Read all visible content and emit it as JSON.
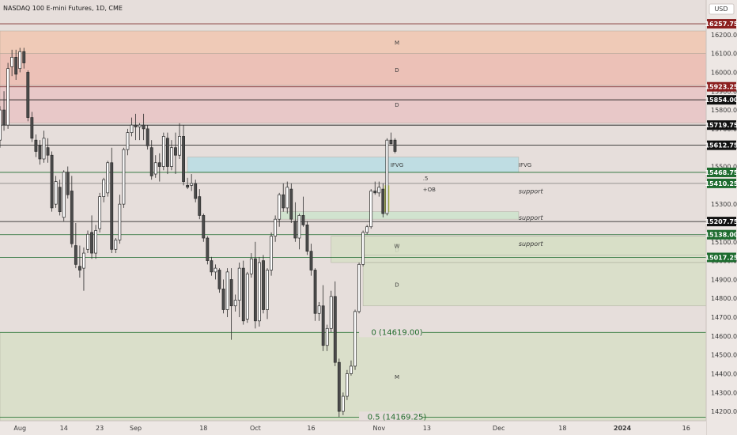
{
  "header": {
    "title": "NASDAQ 100 E-mini Futures, 1D, CME",
    "currency": "USD"
  },
  "chart_data": {
    "type": "candlestick",
    "y_axis": {
      "range": [
        14150,
        16300
      ],
      "ticks": [
        14200,
        14300,
        14400,
        14500,
        14600,
        14700,
        14800,
        14900,
        15000,
        15100,
        15200,
        15300,
        15400,
        15500,
        15600,
        15700,
        15800,
        15900,
        16000,
        16100,
        16200
      ],
      "tick_labels": [
        "14200.00",
        "14300.00",
        "14400.00",
        "14500.00",
        "14600.00",
        "14700.00",
        "14800.00",
        "14900.00",
        "15000.00",
        "15100.00",
        "15200.00",
        "15300.00",
        "15400.00",
        "15500.00",
        "15600.00",
        "15700.00",
        "15800.00",
        "15900.00",
        "16000.00",
        "16100.00",
        "16200.00"
      ]
    },
    "x_axis": {
      "labels": [
        {
          "text": "Aug",
          "day": 3
        },
        {
          "text": "14",
          "day": 14
        },
        {
          "text": "23",
          "day": 23
        },
        {
          "text": "Sep",
          "day": 32
        },
        {
          "text": "18",
          "day": 49
        },
        {
          "text": "Oct",
          "day": 62
        },
        {
          "text": "16",
          "day": 76
        },
        {
          "text": "Nov",
          "day": 93
        },
        {
          "text": "13",
          "day": 105
        },
        {
          "text": "Dec",
          "day": 123
        },
        {
          "text": "18",
          "day": 139
        },
        {
          "text": "2024",
          "day": 154
        },
        {
          "text": "16",
          "day": 170
        }
      ],
      "range": [
        -2,
        175
      ]
    },
    "candles": [
      {
        "d": -2,
        "o": 15640,
        "h": 15820,
        "l": 15600,
        "c": 15800
      },
      {
        "d": -1,
        "o": 15800,
        "h": 15900,
        "l": 15690,
        "c": 15720
      },
      {
        "d": 0,
        "o": 15720,
        "h": 16050,
        "l": 15700,
        "c": 16020
      },
      {
        "d": 1,
        "o": 16030,
        "h": 16120,
        "l": 15980,
        "c": 16080
      },
      {
        "d": 2,
        "o": 16080,
        "h": 16120,
        "l": 15960,
        "c": 15990
      },
      {
        "d": 3,
        "o": 16020,
        "h": 16130,
        "l": 16000,
        "c": 16110
      },
      {
        "d": 4,
        "o": 16110,
        "h": 16130,
        "l": 16020,
        "c": 16050
      },
      {
        "d": 5,
        "o": 16000,
        "h": 16010,
        "l": 15740,
        "c": 15760
      },
      {
        "d": 6,
        "o": 15760,
        "h": 15790,
        "l": 15630,
        "c": 15650
      },
      {
        "d": 7,
        "o": 15640,
        "h": 15670,
        "l": 15550,
        "c": 15580
      },
      {
        "d": 8,
        "o": 15610,
        "h": 15640,
        "l": 15510,
        "c": 15540
      },
      {
        "d": 9,
        "o": 15540,
        "h": 15690,
        "l": 15520,
        "c": 15650
      },
      {
        "d": 10,
        "o": 15600,
        "h": 15650,
        "l": 15520,
        "c": 15560
      },
      {
        "d": 11,
        "o": 15560,
        "h": 15580,
        "l": 15260,
        "c": 15280
      },
      {
        "d": 12,
        "o": 15300,
        "h": 15450,
        "l": 15280,
        "c": 15420
      },
      {
        "d": 13,
        "o": 15390,
        "h": 15430,
        "l": 15240,
        "c": 15260
      },
      {
        "d": 14,
        "o": 15230,
        "h": 15480,
        "l": 15210,
        "c": 15470
      },
      {
        "d": 15,
        "o": 15470,
        "h": 15500,
        "l": 15330,
        "c": 15350
      },
      {
        "d": 16,
        "o": 15370,
        "h": 15450,
        "l": 15070,
        "c": 15090
      },
      {
        "d": 17,
        "o": 15080,
        "h": 15200,
        "l": 14960,
        "c": 14980
      },
      {
        "d": 18,
        "o": 14970,
        "h": 15080,
        "l": 14910,
        "c": 14950
      },
      {
        "d": 19,
        "o": 14960,
        "h": 15070,
        "l": 14840,
        "c": 15040
      },
      {
        "d": 20,
        "o": 15060,
        "h": 15160,
        "l": 15040,
        "c": 15140
      },
      {
        "d": 21,
        "o": 15150,
        "h": 15240,
        "l": 15010,
        "c": 15040
      },
      {
        "d": 22,
        "o": 15040,
        "h": 15190,
        "l": 15010,
        "c": 15160
      },
      {
        "d": 23,
        "o": 15170,
        "h": 15360,
        "l": 15150,
        "c": 15340
      },
      {
        "d": 24,
        "o": 15340,
        "h": 15440,
        "l": 15310,
        "c": 15430
      },
      {
        "d": 25,
        "o": 15360,
        "h": 15530,
        "l": 15340,
        "c": 15520
      },
      {
        "d": 26,
        "o": 15520,
        "h": 15600,
        "l": 15040,
        "c": 15060
      },
      {
        "d": 27,
        "o": 15060,
        "h": 15120,
        "l": 15040,
        "c": 15110
      },
      {
        "d": 28,
        "o": 15110,
        "h": 15350,
        "l": 15090,
        "c": 15300
      },
      {
        "d": 29,
        "o": 15300,
        "h": 15600,
        "l": 15280,
        "c": 15590
      },
      {
        "d": 30,
        "o": 15590,
        "h": 15700,
        "l": 15560,
        "c": 15680
      },
      {
        "d": 31,
        "o": 15680,
        "h": 15760,
        "l": 15660,
        "c": 15720
      },
      {
        "d": 32,
        "o": 15720,
        "h": 15780,
        "l": 15640,
        "c": 15710
      },
      {
        "d": 33,
        "o": 15710,
        "h": 15730,
        "l": 15640,
        "c": 15720
      },
      {
        "d": 34,
        "o": 15720,
        "h": 15780,
        "l": 15640,
        "c": 15700
      },
      {
        "d": 35,
        "o": 15700,
        "h": 15720,
        "l": 15590,
        "c": 15610
      },
      {
        "d": 36,
        "o": 15600,
        "h": 15640,
        "l": 15430,
        "c": 15450
      },
      {
        "d": 37,
        "o": 15460,
        "h": 15560,
        "l": 15440,
        "c": 15520
      },
      {
        "d": 38,
        "o": 15520,
        "h": 15570,
        "l": 15420,
        "c": 15500
      },
      {
        "d": 39,
        "o": 15500,
        "h": 15680,
        "l": 15480,
        "c": 15660
      },
      {
        "d": 40,
        "o": 15650,
        "h": 15680,
        "l": 15460,
        "c": 15500
      },
      {
        "d": 41,
        "o": 15500,
        "h": 15640,
        "l": 15480,
        "c": 15600
      },
      {
        "d": 42,
        "o": 15600,
        "h": 15680,
        "l": 15460,
        "c": 15560
      },
      {
        "d": 43,
        "o": 15560,
        "h": 15730,
        "l": 15540,
        "c": 15660
      },
      {
        "d": 44,
        "o": 15660,
        "h": 15720,
        "l": 15400,
        "c": 15420
      },
      {
        "d": 45,
        "o": 15400,
        "h": 15440,
        "l": 15380,
        "c": 15390
      },
      {
        "d": 46,
        "o": 15400,
        "h": 15460,
        "l": 15370,
        "c": 15410
      },
      {
        "d": 47,
        "o": 15410,
        "h": 15430,
        "l": 15310,
        "c": 15330
      },
      {
        "d": 48,
        "o": 15340,
        "h": 15380,
        "l": 15220,
        "c": 15240
      },
      {
        "d": 49,
        "o": 15240,
        "h": 15250,
        "l": 15100,
        "c": 15120
      },
      {
        "d": 50,
        "o": 15120,
        "h": 15130,
        "l": 14980,
        "c": 15000
      },
      {
        "d": 51,
        "o": 15000,
        "h": 15020,
        "l": 14920,
        "c": 14940
      },
      {
        "d": 52,
        "o": 14940,
        "h": 14980,
        "l": 14900,
        "c": 14960
      },
      {
        "d": 53,
        "o": 14950,
        "h": 14960,
        "l": 14830,
        "c": 14850
      },
      {
        "d": 54,
        "o": 14850,
        "h": 14900,
        "l": 14720,
        "c": 14740
      },
      {
        "d": 55,
        "o": 14740,
        "h": 14960,
        "l": 14700,
        "c": 14940
      },
      {
        "d": 56,
        "o": 14900,
        "h": 14960,
        "l": 14580,
        "c": 14760
      },
      {
        "d": 57,
        "o": 14760,
        "h": 14820,
        "l": 14730,
        "c": 14790
      },
      {
        "d": 58,
        "o": 14790,
        "h": 14990,
        "l": 14700,
        "c": 14960
      },
      {
        "d": 59,
        "o": 14960,
        "h": 15000,
        "l": 14660,
        "c": 14680
      },
      {
        "d": 60,
        "o": 14690,
        "h": 14940,
        "l": 14670,
        "c": 14930
      },
      {
        "d": 61,
        "o": 14930,
        "h": 15040,
        "l": 14910,
        "c": 15010
      },
      {
        "d": 62,
        "o": 15010,
        "h": 15100,
        "l": 14640,
        "c": 14680
      },
      {
        "d": 63,
        "o": 14680,
        "h": 15020,
        "l": 14650,
        "c": 14990
      },
      {
        "d": 64,
        "o": 15000,
        "h": 15030,
        "l": 14720,
        "c": 14740
      },
      {
        "d": 65,
        "o": 14740,
        "h": 14960,
        "l": 14690,
        "c": 14950
      },
      {
        "d": 66,
        "o": 14950,
        "h": 15150,
        "l": 14920,
        "c": 15130
      },
      {
        "d": 67,
        "o": 15130,
        "h": 15240,
        "l": 15100,
        "c": 15220
      },
      {
        "d": 68,
        "o": 15220,
        "h": 15360,
        "l": 15180,
        "c": 15350
      },
      {
        "d": 69,
        "o": 15350,
        "h": 15410,
        "l": 15260,
        "c": 15280
      },
      {
        "d": 70,
        "o": 15280,
        "h": 15420,
        "l": 15250,
        "c": 15390
      },
      {
        "d": 71,
        "o": 15380,
        "h": 15410,
        "l": 15200,
        "c": 15220
      },
      {
        "d": 72,
        "o": 15210,
        "h": 15310,
        "l": 15100,
        "c": 15120
      },
      {
        "d": 73,
        "o": 15120,
        "h": 15250,
        "l": 15060,
        "c": 15240
      },
      {
        "d": 74,
        "o": 15240,
        "h": 15340,
        "l": 15180,
        "c": 15190
      },
      {
        "d": 75,
        "o": 15190,
        "h": 15210,
        "l": 15030,
        "c": 15050
      },
      {
        "d": 76,
        "o": 15050,
        "h": 15090,
        "l": 14920,
        "c": 14950
      },
      {
        "d": 77,
        "o": 14950,
        "h": 14960,
        "l": 14680,
        "c": 14720
      },
      {
        "d": 78,
        "o": 14720,
        "h": 14780,
        "l": 14680,
        "c": 14760
      },
      {
        "d": 79,
        "o": 14760,
        "h": 14870,
        "l": 14520,
        "c": 14550
      },
      {
        "d": 80,
        "o": 14550,
        "h": 14660,
        "l": 14520,
        "c": 14640
      },
      {
        "d": 81,
        "o": 14640,
        "h": 14840,
        "l": 14620,
        "c": 14810
      },
      {
        "d": 82,
        "o": 14810,
        "h": 14890,
        "l": 14440,
        "c": 14460
      },
      {
        "d": 83,
        "o": 14460,
        "h": 14480,
        "l": 14170,
        "c": 14200
      },
      {
        "d": 84,
        "o": 14200,
        "h": 14300,
        "l": 14180,
        "c": 14280
      },
      {
        "d": 85,
        "o": 14280,
        "h": 14420,
        "l": 14260,
        "c": 14400
      },
      {
        "d": 86,
        "o": 14400,
        "h": 14470,
        "l": 14390,
        "c": 14440
      },
      {
        "d": 87,
        "o": 14440,
        "h": 14740,
        "l": 14420,
        "c": 14730
      },
      {
        "d": 88,
        "o": 14730,
        "h": 14990,
        "l": 14720,
        "c": 14980
      },
      {
        "d": 89,
        "o": 14980,
        "h": 15160,
        "l": 14970,
        "c": 15150
      },
      {
        "d": 90,
        "o": 15150,
        "h": 15190,
        "l": 15140,
        "c": 15180
      },
      {
        "d": 91,
        "o": 15180,
        "h": 15380,
        "l": 15170,
        "c": 15370
      },
      {
        "d": 92,
        "o": 15370,
        "h": 15420,
        "l": 15350,
        "c": 15360
      },
      {
        "d": 93,
        "o": 15360,
        "h": 15420,
        "l": 15340,
        "c": 15390
      },
      {
        "d": 94,
        "o": 15380,
        "h": 15410,
        "l": 15230,
        "c": 15250
      },
      {
        "d": 95,
        "o": 15250,
        "h": 15650,
        "l": 15240,
        "c": 15640
      },
      {
        "d": 96,
        "o": 15640,
        "h": 15680,
        "l": 15620,
        "c": 15620
      },
      {
        "d": 97,
        "o": 15640,
        "h": 15650,
        "l": 15570,
        "c": 15580
      }
    ],
    "zones": [
      {
        "label": "M",
        "from": 16100,
        "to": 16220,
        "x_from": -2,
        "x_to": 175,
        "color": "#f0c7b0"
      },
      {
        "label": "D",
        "from": 15930,
        "to": 16100,
        "x_from": -2,
        "x_to": 175,
        "color": "#ecbcb0"
      },
      {
        "label": "D",
        "from": 15730,
        "to": 15930,
        "x_from": -2,
        "x_to": 175,
        "color": "#e8c4c4"
      },
      {
        "label": "IFVG",
        "from": 15470,
        "to": 15550,
        "x_from": 45,
        "x_to": 128,
        "color": "#b7dde4"
      },
      {
        "label": "",
        "from": 15220,
        "to": 15260,
        "x_from": 68,
        "x_to": 128,
        "color": "#cde4cc"
      },
      {
        "label": "D",
        "from": 14990,
        "to": 15130,
        "x_from": 81,
        "x_to": 175,
        "color": "#d7dfc7"
      },
      {
        "label": "W",
        "from": 15030,
        "to": 15130,
        "x_from": 89,
        "x_to": 175,
        "color": "#d7dfc7"
      },
      {
        "label": "D",
        "from": 14760,
        "to": 14990,
        "x_from": 89,
        "x_to": 175,
        "color": "#d7dfc7"
      },
      {
        "label": "M",
        "from": 14150,
        "to": 14619,
        "x_from": -2,
        "x_to": 175,
        "color": "#d7dfc7"
      }
    ],
    "levels": [
      {
        "price": 16257.75,
        "label": "16257.75",
        "badge_color": "#8b1e1e",
        "line_color": "#7a2a2a"
      },
      {
        "price": 15923.25,
        "label": "15923.25",
        "badge_color": "#8b1e1e",
        "line_color": "#7a2a2a"
      },
      {
        "price": 15854.0,
        "label": "15854.00",
        "badge_color": "#111111",
        "line_color": "#111111"
      },
      {
        "price": 15719.75,
        "label": "15719.75",
        "badge_color": "#111111",
        "line_color": "#111111"
      },
      {
        "price": 15612.75,
        "label": "15612.75",
        "badge_color": "#111111",
        "line_color": "#111111"
      },
      {
        "price": 15468.75,
        "label": "15468.75",
        "badge_color": "#1d6b2e",
        "line_color": "#1d6b2e"
      },
      {
        "price": 15410.25,
        "label": "15410.25",
        "badge_color": "#1d6b2e",
        "line_color": "#7a7a7a"
      },
      {
        "price": 15207.75,
        "label": "15207.75",
        "badge_color": "#111111",
        "line_color": "#111111"
      },
      {
        "price": 15138.0,
        "label": "15138.00",
        "badge_color": "#1d6b2e",
        "line_color": "#1d6b2e"
      },
      {
        "price": 15017.25,
        "label": "15017.25",
        "badge_color": "#1d6b2e",
        "line_color": "#1d6b2e"
      }
    ],
    "fib_levels": [
      {
        "price": 14619.0,
        "label": "0 (14619.00)"
      },
      {
        "price": 14169.25,
        "label": "0.5 (14169.25)"
      }
    ],
    "annotations": [
      {
        "text": "IFVG",
        "price": 15510,
        "day": 128,
        "style": "plain"
      },
      {
        "text": ".5",
        "price": 15440,
        "day": 104,
        "style": "plain"
      },
      {
        "text": "+OB",
        "price": 15380,
        "day": 104,
        "style": "plain"
      },
      {
        "text": "support",
        "price": 15370,
        "day": 128,
        "style": "italic"
      },
      {
        "text": "support",
        "price": 15230,
        "day": 128,
        "style": "italic"
      },
      {
        "text": "support",
        "price": 15090,
        "day": 128,
        "style": "italic"
      }
    ],
    "highlight_candle": {
      "day": 95,
      "from": 15260,
      "to": 15400,
      "color": "#c8d94a"
    }
  }
}
